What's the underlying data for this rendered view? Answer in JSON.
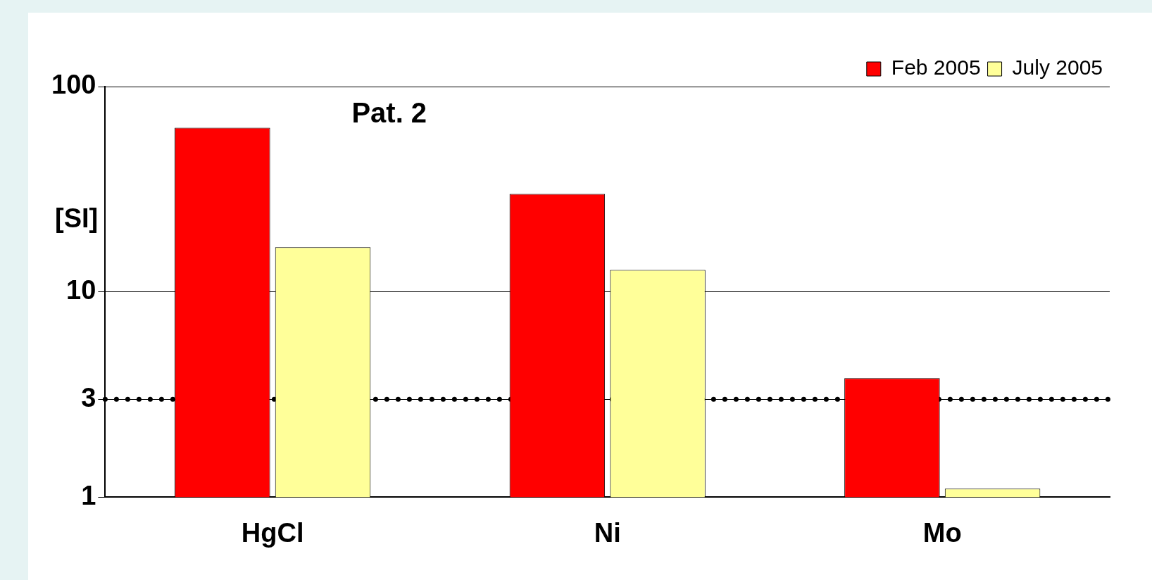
{
  "chart_data": {
    "type": "bar",
    "title": "Pat. 2",
    "ylabel": "[SI]",
    "categories": [
      "HgCl",
      "Ni",
      "Mo"
    ],
    "series": [
      {
        "name": "Feb 2005",
        "color": "#ff0000",
        "values": [
          63,
          30,
          3.8
        ]
      },
      {
        "name": "July 2005",
        "color": "#ffff99",
        "values": [
          16.5,
          12.8,
          1.1
        ]
      }
    ],
    "log": true,
    "ylim": [
      1,
      100
    ],
    "yticks": [
      1,
      3,
      10,
      100
    ],
    "grid": "y",
    "legend": "top right",
    "ref_lines": [
      {
        "axis": "y",
        "value": 3,
        "line_style": "dotted",
        "color": "#000000"
      }
    ]
  }
}
